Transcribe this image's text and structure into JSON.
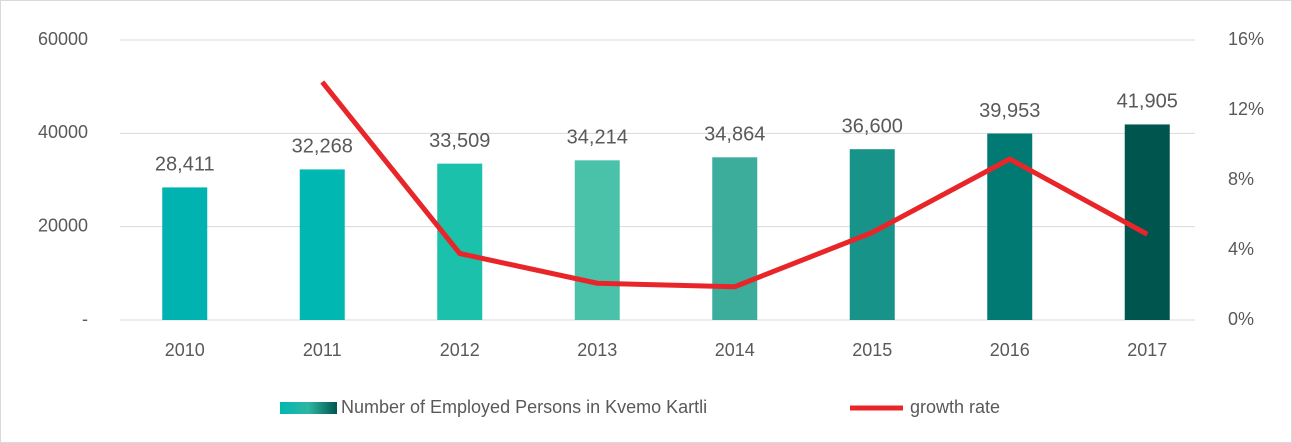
{
  "chart_data": {
    "type": "bar_line",
    "categories": [
      "2010",
      "2011",
      "2012",
      "2013",
      "2014",
      "2015",
      "2016",
      "2017"
    ],
    "series": [
      {
        "name": "Number of Employed Persons in Kvemo Kartli",
        "type": "bar",
        "axis": "y",
        "colors": [
          "#00b3b0",
          "#00b8b1",
          "#1cc1ab",
          "#4ac2a9",
          "#3cad9b",
          "#18938a",
          "#007a72",
          "#00564f"
        ],
        "values": [
          28411,
          32268,
          33509,
          34214,
          34864,
          36600,
          39953,
          41905
        ],
        "value_labels": [
          "28,411",
          "32,268",
          "33,509",
          "34,214",
          "34,864",
          "36,600",
          "39,953",
          "41,905"
        ]
      },
      {
        "name": "growth rate",
        "type": "line",
        "axis": "y2",
        "color": "#e8262a",
        "values": [
          null,
          13.6,
          3.8,
          2.1,
          1.9,
          5.0,
          9.2,
          4.9
        ]
      }
    ],
    "ylim": [
      0,
      60000
    ],
    "yticks": [
      {
        "value": 0,
        "label": "-"
      },
      20000,
      40000,
      60000
    ],
    "y2lim": [
      0,
      16
    ],
    "y2ticks": [
      {
        "value": 0,
        "label": "0%"
      },
      {
        "value": 4,
        "label": "4%"
      },
      {
        "value": 8,
        "label": "8%"
      },
      {
        "value": 12,
        "label": "12%"
      },
      {
        "value": 16,
        "label": "16%"
      }
    ],
    "grid": true,
    "legend": "bottom"
  }
}
